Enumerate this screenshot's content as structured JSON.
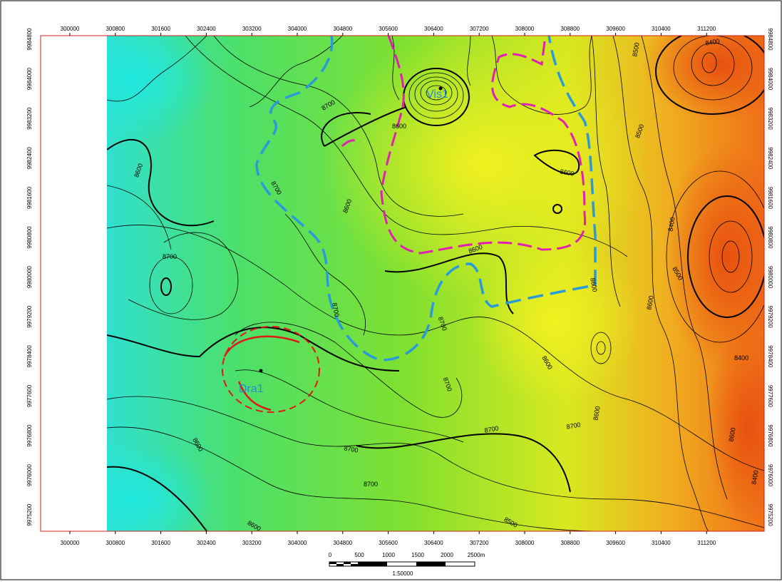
{
  "map": {
    "x_ticks": [
      "300000",
      "300800",
      "301600",
      "302400",
      "303200",
      "304000",
      "304800",
      "305600",
      "306400",
      "307200",
      "308000",
      "308800",
      "309600",
      "310400",
      "311200"
    ],
    "y_ticks": [
      "9984800",
      "9984000",
      "9983200",
      "9982400",
      "9981600",
      "9980800",
      "9980000",
      "9979200",
      "9978400",
      "9977600",
      "9976800",
      "9976000",
      "9975200"
    ],
    "contour_labels": [
      "8400",
      "8500",
      "8700",
      "8600",
      "8600",
      "8700",
      "8600",
      "8600",
      "8600",
      "8500",
      "8400",
      "8500",
      "8600",
      "8600",
      "8700",
      "8700",
      "8700",
      "8600",
      "8700",
      "8700",
      "8600",
      "8700",
      "8700",
      "8700",
      "8600",
      "8600",
      "8400",
      "8600",
      "8400",
      "8500"
    ],
    "wells": [
      "Vis1",
      "Dra1"
    ],
    "scale": {
      "labels": [
        "0",
        "500",
        "1000",
        "1500",
        "2000",
        "2500m"
      ],
      "ratio": "1:50000"
    }
  }
}
